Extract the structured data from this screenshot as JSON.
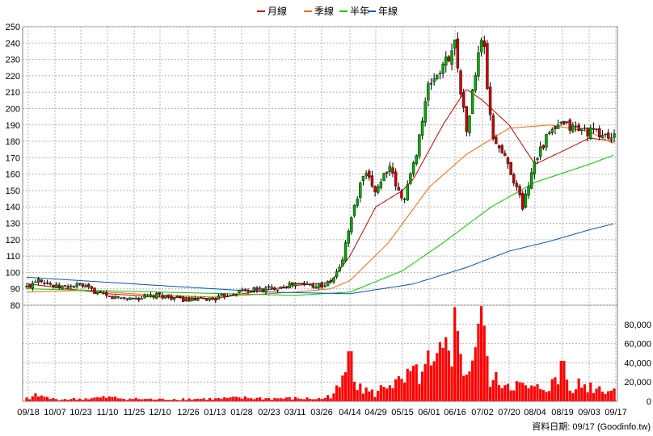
{
  "chart_data": [
    {
      "type": "candlestick",
      "legend": [
        {
          "label": "月線",
          "color": "#cc0000"
        },
        {
          "label": "季線",
          "color": "#ff6600"
        },
        {
          "label": "半年",
          "color": "#00cc00"
        },
        {
          "label": "年線",
          "color": "#0055cc"
        }
      ],
      "ylim": [
        80,
        250
      ],
      "y_ticks": [
        80,
        90,
        100,
        110,
        120,
        130,
        140,
        150,
        160,
        170,
        180,
        190,
        200,
        210,
        220,
        230,
        240,
        250
      ],
      "grid": true,
      "up_color": "#00aa00",
      "down_color": "#cc0000",
      "close_anchors": [
        {
          "date": "09/18",
          "close": 91
        },
        {
          "date": "09/25",
          "close": 97
        },
        {
          "date": "10/07",
          "close": 91
        },
        {
          "date": "10/23",
          "close": 92
        },
        {
          "date": "11/10",
          "close": 85
        },
        {
          "date": "11/25",
          "close": 84
        },
        {
          "date": "12/10",
          "close": 86
        },
        {
          "date": "12/26",
          "close": 83
        },
        {
          "date": "01/13",
          "close": 84
        },
        {
          "date": "01/28",
          "close": 89
        },
        {
          "date": "02/23",
          "close": 90
        },
        {
          "date": "03/11",
          "close": 93
        },
        {
          "date": "03/26",
          "close": 92
        },
        {
          "date": "04/01",
          "close": 94
        },
        {
          "date": "04/08",
          "close": 104
        },
        {
          "date": "04/14",
          "close": 130
        },
        {
          "date": "04/22",
          "close": 160
        },
        {
          "date": "04/29",
          "close": 150
        },
        {
          "date": "05/06",
          "close": 165
        },
        {
          "date": "05/15",
          "close": 143
        },
        {
          "date": "05/22",
          "close": 165
        },
        {
          "date": "06/01",
          "close": 215
        },
        {
          "date": "06/09",
          "close": 225
        },
        {
          "date": "06/16",
          "close": 240
        },
        {
          "date": "06/23",
          "close": 185
        },
        {
          "date": "07/02",
          "close": 248
        },
        {
          "date": "07/08",
          "close": 185
        },
        {
          "date": "07/20",
          "close": 165
        },
        {
          "date": "07/28",
          "close": 140
        },
        {
          "date": "08/04",
          "close": 170
        },
        {
          "date": "08/12",
          "close": 185
        },
        {
          "date": "08/19",
          "close": 190
        },
        {
          "date": "08/26",
          "close": 182
        },
        {
          "date": "09/03",
          "close": 178
        },
        {
          "date": "09/10",
          "close": 174
        },
        {
          "date": "09/17",
          "close": 182
        }
      ],
      "moving_averages": [
        {
          "name": "月線",
          "color": "#cc0000",
          "anchors": [
            {
              "date": "09/18",
              "value": 93
            },
            {
              "date": "10/07",
              "value": 91
            },
            {
              "date": "11/10",
              "value": 87
            },
            {
              "date": "12/10",
              "value": 85
            },
            {
              "date": "01/13",
              "value": 84
            },
            {
              "date": "01/28",
              "value": 87
            },
            {
              "date": "03/11",
              "value": 92
            },
            {
              "date": "04/01",
              "value": 94
            },
            {
              "date": "04/14",
              "value": 110
            },
            {
              "date": "04/29",
              "value": 140
            },
            {
              "date": "05/15",
              "value": 150
            },
            {
              "date": "05/22",
              "value": 157
            },
            {
              "date": "06/09",
              "value": 190
            },
            {
              "date": "06/23",
              "value": 212
            },
            {
              "date": "07/02",
              "value": 205
            },
            {
              "date": "07/20",
              "value": 190
            },
            {
              "date": "08/04",
              "value": 166
            },
            {
              "date": "08/19",
              "value": 174
            },
            {
              "date": "09/03",
              "value": 182
            },
            {
              "date": "09/17",
              "value": 180
            }
          ]
        },
        {
          "name": "季線",
          "color": "#ff6600",
          "anchors": [
            {
              "date": "09/18",
              "value": 88
            },
            {
              "date": "10/23",
              "value": 89
            },
            {
              "date": "12/10",
              "value": 86
            },
            {
              "date": "01/13",
              "value": 85
            },
            {
              "date": "03/11",
              "value": 88
            },
            {
              "date": "04/01",
              "value": 90
            },
            {
              "date": "04/14",
              "value": 95
            },
            {
              "date": "05/06",
              "value": 118
            },
            {
              "date": "06/01",
              "value": 152
            },
            {
              "date": "06/23",
              "value": 172
            },
            {
              "date": "07/20",
              "value": 188
            },
            {
              "date": "08/12",
              "value": 190
            },
            {
              "date": "09/03",
              "value": 186
            },
            {
              "date": "09/17",
              "value": 178
            }
          ]
        },
        {
          "name": "半年",
          "color": "#00cc00",
          "anchors": [
            {
              "date": "09/18",
              "value": 90
            },
            {
              "date": "12/10",
              "value": 88
            },
            {
              "date": "03/11",
              "value": 86
            },
            {
              "date": "04/14",
              "value": 88
            },
            {
              "date": "05/15",
              "value": 101
            },
            {
              "date": "06/09",
              "value": 118
            },
            {
              "date": "07/08",
              "value": 140
            },
            {
              "date": "08/04",
              "value": 155
            },
            {
              "date": "09/03",
              "value": 166
            },
            {
              "date": "09/17",
              "value": 172
            }
          ]
        },
        {
          "name": "年線",
          "color": "#0055cc",
          "anchors": [
            {
              "date": "09/18",
              "value": 97
            },
            {
              "date": "12/10",
              "value": 92
            },
            {
              "date": "02/23",
              "value": 88
            },
            {
              "date": "04/14",
              "value": 87
            },
            {
              "date": "05/22",
              "value": 93
            },
            {
              "date": "06/23",
              "value": 103
            },
            {
              "date": "07/20",
              "value": 113
            },
            {
              "date": "08/12",
              "value": 119
            },
            {
              "date": "09/03",
              "value": 126
            },
            {
              "date": "09/17",
              "value": 130
            }
          ]
        }
      ]
    },
    {
      "type": "bar",
      "ylim": [
        0,
        100000
      ],
      "y_ticks": [
        0,
        20000,
        40000,
        60000,
        80000
      ],
      "y_tick_labels": [
        "0",
        "20,000",
        "40,000",
        "60,000",
        "80,000"
      ],
      "color": "#ff0000",
      "volume_anchors": [
        {
          "date": "09/18",
          "value": 3000
        },
        {
          "date": "09/25",
          "value": 6000
        },
        {
          "date": "10/07",
          "value": 2000
        },
        {
          "date": "10/23",
          "value": 2500
        },
        {
          "date": "11/10",
          "value": 4000
        },
        {
          "date": "11/25",
          "value": 2500
        },
        {
          "date": "12/10",
          "value": 2000
        },
        {
          "date": "12/26",
          "value": 2500
        },
        {
          "date": "01/13",
          "value": 2500
        },
        {
          "date": "01/28",
          "value": 3500
        },
        {
          "date": "02/23",
          "value": 3000
        },
        {
          "date": "03/11",
          "value": 3000
        },
        {
          "date": "03/26",
          "value": 2500
        },
        {
          "date": "04/01",
          "value": 6000
        },
        {
          "date": "04/08",
          "value": 15000
        },
        {
          "date": "04/14",
          "value": 40000
        },
        {
          "date": "04/22",
          "value": 12000
        },
        {
          "date": "04/29",
          "value": 7000
        },
        {
          "date": "05/06",
          "value": 20000
        },
        {
          "date": "05/15",
          "value": 17000
        },
        {
          "date": "05/22",
          "value": 30000
        },
        {
          "date": "06/01",
          "value": 25000
        },
        {
          "date": "06/09",
          "value": 45000
        },
        {
          "date": "06/16",
          "value": 60000
        },
        {
          "date": "06/23",
          "value": 30000
        },
        {
          "date": "07/02",
          "value": 65000
        },
        {
          "date": "07/08",
          "value": 20000
        },
        {
          "date": "07/20",
          "value": 20000
        },
        {
          "date": "07/28",
          "value": 14000
        },
        {
          "date": "08/04",
          "value": 12000
        },
        {
          "date": "08/12",
          "value": 17000
        },
        {
          "date": "08/19",
          "value": 20000
        },
        {
          "date": "08/26",
          "value": 11000
        },
        {
          "date": "09/03",
          "value": 10000
        },
        {
          "date": "09/10",
          "value": 9000
        },
        {
          "date": "09/17",
          "value": 12000
        }
      ],
      "volume_spikes": [
        {
          "date": "04/14",
          "value": 52000
        },
        {
          "date": "05/22",
          "value": 37000
        },
        {
          "date": "06/01",
          "value": 53000
        },
        {
          "date": "06/16",
          "value": 98000
        },
        {
          "date": "07/02",
          "value": 99000
        },
        {
          "date": "08/19",
          "value": 42000
        }
      ]
    }
  ],
  "x_ticks": [
    "09/18",
    "10/07",
    "10/23",
    "11/10",
    "11/25",
    "12/10",
    "12/26",
    "01/13",
    "01/28",
    "02/23",
    "03/11",
    "03/26",
    "04/14",
    "04/29",
    "05/15",
    "06/01",
    "06/16",
    "07/02",
    "07/20",
    "08/04",
    "08/19",
    "09/03",
    "09/17"
  ],
  "footer": "資料日期: 09/17  (Goodinfo.tw)"
}
